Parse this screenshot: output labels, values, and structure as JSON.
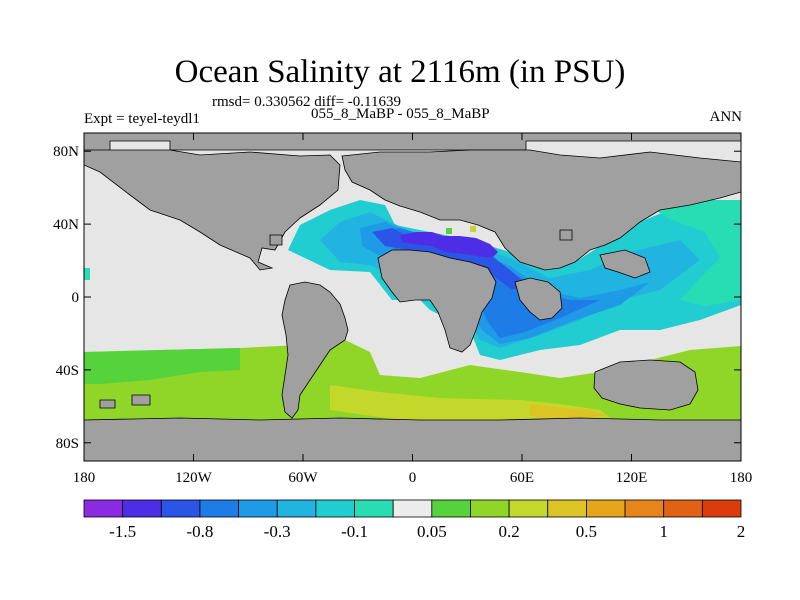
{
  "header": {
    "title": "Ocean Salinity at 2116m (in PSU)",
    "stats": "rmsd= 0.330562 diff= -0.11639",
    "experiment": "Expt = teyel-teydl1",
    "cases": "055_8_MaBP - 055_8_MaBP",
    "season": "ANN"
  },
  "map": {
    "x_ticks": [
      {
        "lon": -180,
        "label": "180"
      },
      {
        "lon": -120,
        "label": "120W"
      },
      {
        "lon": -60,
        "label": "60W"
      },
      {
        "lon": 0,
        "label": "0"
      },
      {
        "lon": 60,
        "label": "60E"
      },
      {
        "lon": 120,
        "label": "120E"
      },
      {
        "lon": 180,
        "label": "180"
      }
    ],
    "y_ticks": [
      {
        "lat": 80,
        "label": "80N"
      },
      {
        "lat": 40,
        "label": "40N"
      },
      {
        "lat": 0,
        "label": "0"
      },
      {
        "lat": -40,
        "label": "40S"
      },
      {
        "lat": -80,
        "label": "80S"
      }
    ],
    "lon_range": [
      -180,
      180
    ],
    "lat_range": [
      -90,
      90
    ],
    "land_color": "#a0a0a0",
    "missing_color": "#e6e6e6"
  },
  "colorbar": {
    "colors": [
      "#8a2be2",
      "#4d2ee6",
      "#2a55e6",
      "#1e7ce6",
      "#1e9ae6",
      "#21b4e0",
      "#22cdd2",
      "#28dcb4",
      "#ececec",
      "#55d23c",
      "#8fd628",
      "#c3d82a",
      "#dcc425",
      "#e6a61b",
      "#e6851a",
      "#e06214",
      "#db3c0e"
    ],
    "labels": [
      {
        "after_box": 1,
        "text": "-1.5"
      },
      {
        "after_box": 3,
        "text": "-0.8"
      },
      {
        "after_box": 5,
        "text": "-0.3"
      },
      {
        "after_box": 7,
        "text": "-0.1"
      },
      {
        "after_box": 9,
        "text": "0.05"
      },
      {
        "after_box": 11,
        "text": "0.2"
      },
      {
        "after_box": 13,
        "text": "0.5"
      },
      {
        "after_box": 15,
        "text": "1"
      },
      {
        "after_box": 17,
        "text": "2"
      }
    ]
  }
}
